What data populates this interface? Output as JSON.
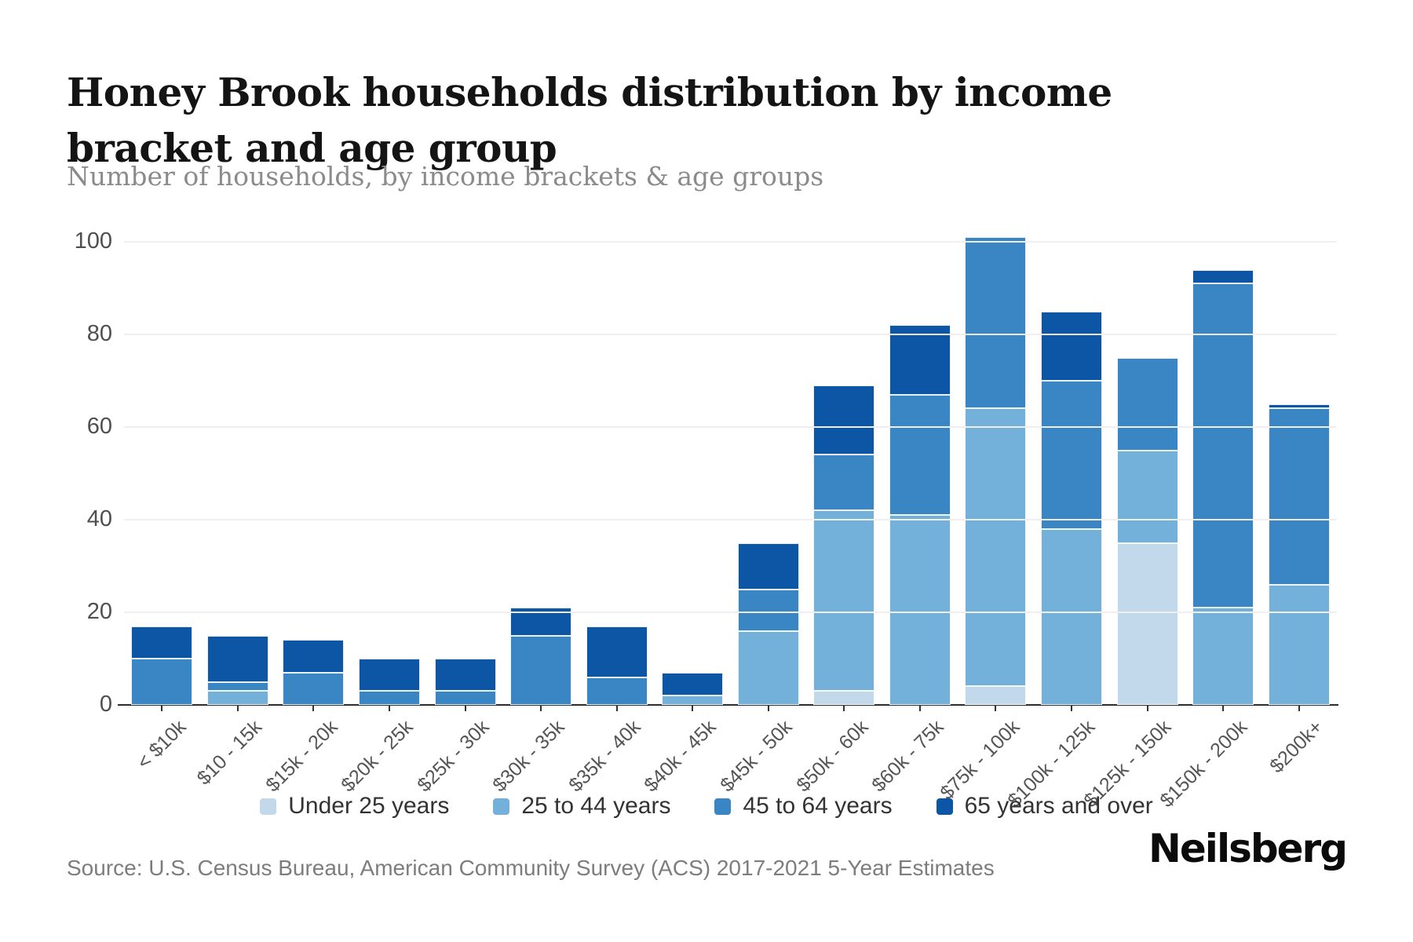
{
  "header": {
    "title": "Honey Brook households distribution by income bracket and age group",
    "subtitle": "Number of households, by income brackets & age groups"
  },
  "chart_data": {
    "type": "bar",
    "stacked": true,
    "title": "Honey Brook households distribution by income bracket and age group",
    "xlabel": "",
    "ylabel": "Number of households",
    "categories": [
      "< $10k",
      "$10 - 15k",
      "$15k - 20k",
      "$20k - 25k",
      "$25k - 30k",
      "$30k - 35k",
      "$35k - 40k",
      "$40k - 45k",
      "$45k - 50k",
      "$50k - 60k",
      "$60k - 75k",
      "$75k - 100k",
      "$100k - 125k",
      "$125k - 150k",
      "$150k - 200k",
      "$200k+"
    ],
    "series": [
      {
        "name": "Under 25 years",
        "color": "#c2d9ec",
        "values": [
          0,
          0,
          0,
          0,
          0,
          0,
          0,
          0,
          0,
          3,
          0,
          4,
          0,
          35,
          0,
          0
        ]
      },
      {
        "name": "25 to 44 years",
        "color": "#74b1da",
        "values": [
          0,
          3,
          0,
          0,
          0,
          0,
          0,
          2,
          16,
          39,
          41,
          60,
          38,
          20,
          21,
          26
        ]
      },
      {
        "name": "45 to 64 years",
        "color": "#3a85c4",
        "values": [
          10,
          2,
          7,
          3,
          3,
          15,
          6,
          0,
          9,
          12,
          26,
          37,
          32,
          20,
          70,
          38
        ]
      },
      {
        "name": "65 years and over",
        "color": "#0c56a5",
        "values": [
          7,
          10,
          7,
          7,
          7,
          6,
          11,
          5,
          10,
          15,
          15,
          0,
          15,
          0,
          3,
          1
        ]
      }
    ],
    "totals": [
      17,
      15,
      14,
      10,
      10,
      21,
      17,
      7,
      35,
      69,
      82,
      101,
      85,
      75,
      94,
      65
    ],
    "yticks": [
      0,
      20,
      40,
      60,
      80,
      100
    ],
    "ylim": [
      0,
      109
    ],
    "grid": true,
    "legend_position": "bottom"
  },
  "footer": {
    "source": "Source: U.S. Census Bureau, American Community Survey (ACS) 2017-2021 5-Year Estimates",
    "logo": "Neilsberg"
  }
}
